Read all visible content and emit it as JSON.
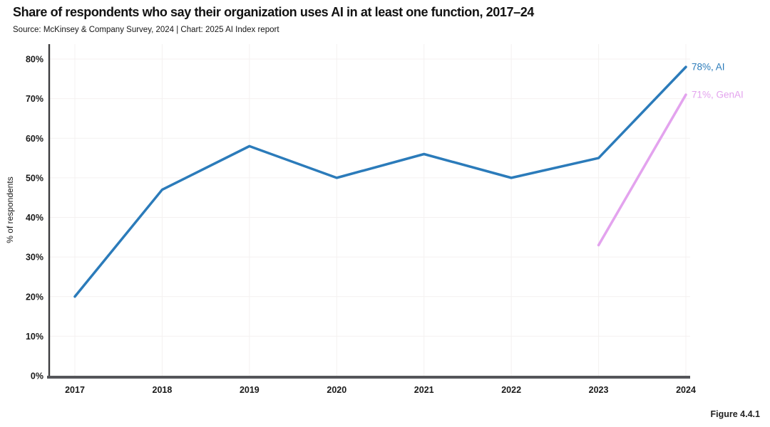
{
  "header": {
    "title": "Share of respondents who say their organization uses AI in at least one function, 2017–24",
    "source": "Source: McKinsey & Company Survey, 2024 | Chart: 2025 AI Index report"
  },
  "figure_label": "Figure 4.4.1",
  "chart_data": {
    "type": "line",
    "title": "Share of respondents who say their organization uses AI in at least one function, 2017–24",
    "xlabel": "",
    "ylabel": "% of respondents",
    "categories": [
      "2017",
      "2018",
      "2019",
      "2020",
      "2021",
      "2022",
      "2023",
      "2024"
    ],
    "ylim": [
      0,
      80
    ],
    "yticks": [
      "0%",
      "10%",
      "20%",
      "30%",
      "40%",
      "50%",
      "60%",
      "70%",
      "80%"
    ],
    "grid": true,
    "legend_position": "line-end-labels",
    "series": [
      {
        "name": "AI",
        "color": "#2B7BBA",
        "x": [
          "2017",
          "2018",
          "2019",
          "2020",
          "2021",
          "2022",
          "2023",
          "2024"
        ],
        "values": [
          20,
          47,
          58,
          50,
          56,
          50,
          55,
          78
        ],
        "end_label": "78%, AI"
      },
      {
        "name": "GenAI",
        "color": "#E3A3EE",
        "x": [
          "2023",
          "2024"
        ],
        "values": [
          33,
          71
        ],
        "end_label": "71%, GenAI"
      }
    ]
  }
}
